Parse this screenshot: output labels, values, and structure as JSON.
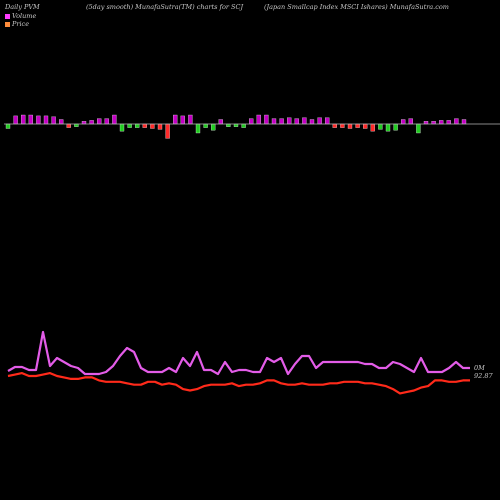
{
  "header": {
    "left": "Daily PVM",
    "middle": "(5day smooth) MunafaSutra(TM) charts for SCJ",
    "right": "(Japan Smallcap Index MSCI Ishares) MunafaSutra.com"
  },
  "legend": [
    {
      "label": "Volume",
      "color": "#ff3cff"
    },
    {
      "label": "Price",
      "color": "#ff8c3c"
    }
  ],
  "colors": {
    "background": "#000000",
    "volume_line": "#e35ce8",
    "price_line": "#ff2a1a",
    "bar_up": "#c400c4",
    "bar_down_red": "#ff2a2a",
    "bar_down_green": "#22cc22",
    "baseline": "#b4b4b4"
  },
  "chart_data": [
    {
      "type": "bar",
      "title": "",
      "series_signs": [
        -1,
        1,
        1,
        1,
        1,
        1,
        1,
        1,
        -1,
        -1,
        1,
        1,
        1,
        1,
        1,
        -1,
        -1,
        -1,
        -1,
        -1,
        -1,
        -1,
        1,
        1,
        1,
        -1,
        -1,
        -1,
        1,
        -1,
        -1,
        -1,
        1,
        1,
        1,
        1,
        1,
        1,
        1,
        1,
        1,
        1,
        1,
        -1,
        -1,
        -1,
        -1,
        -1,
        -1,
        -1,
        -1,
        -1,
        1,
        1,
        -1,
        1,
        1,
        1,
        1,
        1,
        1
      ],
      "values": [
        -0.5,
        0.9,
        1.0,
        1.0,
        0.9,
        0.9,
        0.8,
        0.5,
        -0.4,
        -0.3,
        0.3,
        0.4,
        0.6,
        0.6,
        1.0,
        -0.8,
        -0.4,
        -0.4,
        -0.4,
        -0.5,
        -0.6,
        -1.6,
        1.0,
        0.9,
        1.0,
        -1.0,
        -0.4,
        -0.7,
        0.5,
        -0.3,
        -0.3,
        -0.4,
        0.6,
        1.0,
        1.0,
        0.6,
        0.6,
        0.7,
        0.6,
        0.7,
        0.5,
        0.7,
        0.7,
        -0.4,
        -0.4,
        -0.5,
        -0.4,
        -0.5,
        -0.8,
        -0.6,
        -0.8,
        -0.7,
        0.5,
        0.6,
        -1.0,
        0.3,
        0.3,
        0.4,
        0.4,
        0.6,
        0.5
      ],
      "bar_colors": [
        "g",
        "m",
        "m",
        "m",
        "m",
        "m",
        "m",
        "m",
        "r",
        "g",
        "m",
        "m",
        "m",
        "m",
        "m",
        "g",
        "g",
        "g",
        "r",
        "r",
        "r",
        "r",
        "m",
        "m",
        "m",
        "g",
        "g",
        "g",
        "m",
        "g",
        "g",
        "g",
        "m",
        "m",
        "m",
        "m",
        "m",
        "m",
        "m",
        "m",
        "m",
        "m",
        "m",
        "r",
        "r",
        "r",
        "r",
        "r",
        "r",
        "g",
        "g",
        "g",
        "m",
        "m",
        "g",
        "m",
        "m",
        "m",
        "m",
        "m",
        "m"
      ]
    },
    {
      "type": "line",
      "title": "",
      "series": [
        {
          "name": "Volume",
          "values": [
            5,
            9,
            9,
            6,
            6,
            44,
            10,
            18,
            14,
            10,
            8,
            2,
            2,
            2,
            4,
            10,
            20,
            28,
            24,
            8,
            4,
            4,
            4,
            8,
            4,
            18,
            10,
            24,
            6,
            6,
            2,
            14,
            4,
            6,
            6,
            4,
            4,
            18,
            14,
            18,
            2,
            12,
            20,
            20,
            8,
            14,
            14,
            14,
            14,
            14,
            14,
            12,
            12,
            8,
            8,
            14,
            12,
            8,
            4,
            18,
            4,
            4,
            4,
            8,
            14,
            8,
            8
          ]
        },
        {
          "name": "Price",
          "values": [
            0,
            1,
            2,
            0,
            0,
            1,
            2,
            0,
            -1,
            -2,
            -2,
            -1,
            -1,
            -3,
            -4,
            -4,
            -4,
            -5,
            -6,
            -6,
            -4,
            -4,
            -6,
            -5,
            -6,
            -9,
            -10,
            -9,
            -7,
            -6,
            -6,
            -6,
            -5,
            -7,
            -6,
            -6,
            -5,
            -3,
            -3,
            -5,
            -6,
            -6,
            -5,
            -6,
            -6,
            -6,
            -5,
            -5,
            -4,
            -4,
            -4,
            -5,
            -5,
            -6,
            -7,
            -9,
            -12,
            -11,
            -10,
            -8,
            -7,
            -3,
            -3,
            -4,
            -4,
            -3,
            -3
          ]
        }
      ],
      "right_labels": [
        "0M",
        "92.87"
      ]
    }
  ]
}
